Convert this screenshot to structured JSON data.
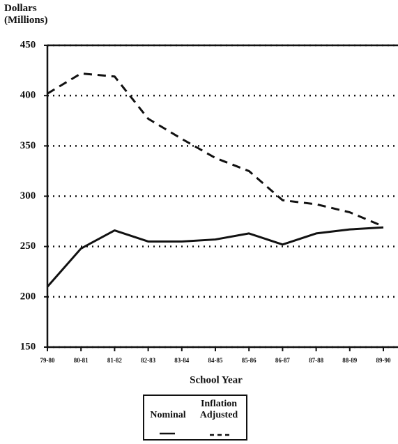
{
  "chart_data": {
    "type": "line",
    "ylabel": "Dollars (Millions)",
    "xlabel": "School Year",
    "categories": [
      "79-80",
      "80-81",
      "81-82",
      "82-83",
      "83-84",
      "84-85",
      "85-86",
      "86-87",
      "87-88",
      "88-89",
      "89-90"
    ],
    "series": [
      {
        "name": "Nominal",
        "color": "#111111",
        "dash": "solid",
        "values": [
          210,
          248,
          266,
          255,
          255,
          257,
          263,
          252,
          263,
          267,
          269
        ]
      },
      {
        "name": "Inflation Adjusted",
        "color": "#111111",
        "dash": "dashed",
        "values": [
          402,
          422,
          419,
          377,
          357,
          338,
          325,
          296,
          292,
          284,
          270
        ]
      }
    ],
    "ylim": [
      150,
      450
    ],
    "yticks": [
      150,
      200,
      250,
      300,
      350,
      400,
      450
    ],
    "grid": true
  }
}
